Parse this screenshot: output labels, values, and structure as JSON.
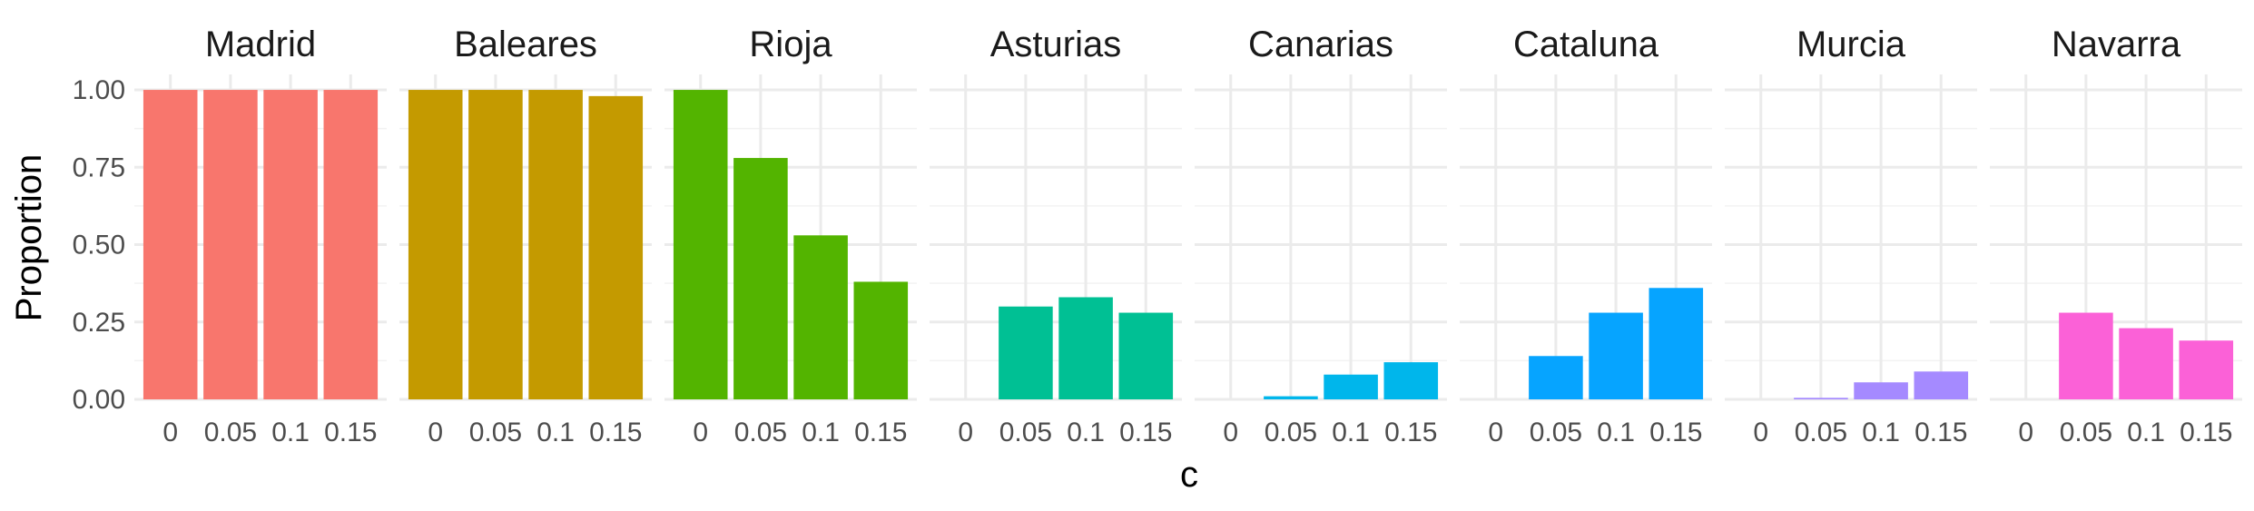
{
  "chart_data": {
    "type": "bar",
    "categories": [
      "0",
      "0.05",
      "0.1",
      "0.15"
    ],
    "xlabel": "c",
    "ylabel": "Proportion",
    "ylim": [
      0,
      1.05
    ],
    "yticks": [
      "0.00",
      "0.25",
      "0.50",
      "0.75",
      "1.00"
    ],
    "ytick_values": [
      0,
      0.25,
      0.5,
      0.75,
      1.0
    ],
    "grid": true,
    "facets": [
      {
        "name": "Madrid",
        "color": "#F8766D",
        "values": [
          1.0,
          1.0,
          1.0,
          1.0
        ]
      },
      {
        "name": "Baleares",
        "color": "#C49A00",
        "values": [
          1.0,
          1.0,
          1.0,
          0.98
        ]
      },
      {
        "name": "Rioja",
        "color": "#53B400",
        "values": [
          1.0,
          0.78,
          0.53,
          0.38
        ]
      },
      {
        "name": "Asturias",
        "color": "#00C094",
        "values": [
          0.0,
          0.3,
          0.33,
          0.28
        ]
      },
      {
        "name": "Canarias",
        "color": "#00B6EB",
        "values": [
          0.0,
          0.01,
          0.08,
          0.12
        ]
      },
      {
        "name": "Cataluna",
        "color": "#06A4FF",
        "values": [
          0.0,
          0.14,
          0.28,
          0.36
        ]
      },
      {
        "name": "Murcia",
        "color": "#A58AFF",
        "values": [
          0.0,
          0.005,
          0.055,
          0.09
        ]
      },
      {
        "name": "Navarra",
        "color": "#FB61D7",
        "values": [
          0.0,
          0.28,
          0.23,
          0.19
        ]
      }
    ]
  }
}
